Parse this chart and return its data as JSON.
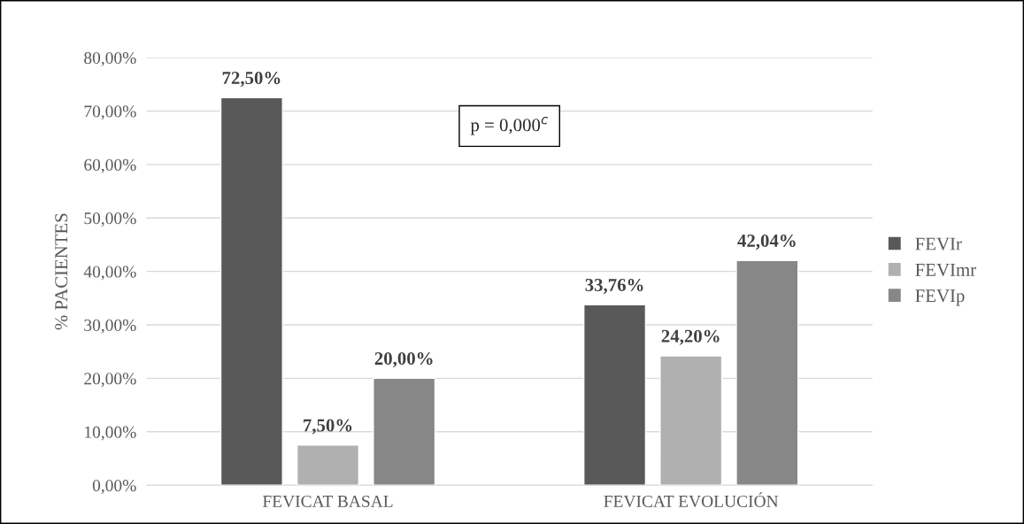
{
  "chart_data": {
    "type": "bar",
    "ylabel": "% PACIENTES",
    "categories": [
      "FEVICAT BASAL",
      "FEVICAT EVOLUCIÓN"
    ],
    "series": [
      {
        "name": "FEVIr",
        "color": "#595959",
        "values": [
          72.5,
          33.76
        ],
        "value_labels": [
          "72,50%",
          "33,76%"
        ]
      },
      {
        "name": "FEVImr",
        "color": "#b0b0b0",
        "values": [
          7.5,
          24.2
        ],
        "value_labels": [
          "7,50%",
          "24,20%"
        ]
      },
      {
        "name": "FEVIp",
        "color": "#878787",
        "values": [
          20.0,
          42.04
        ],
        "value_labels": [
          "20,00%",
          "42,04%"
        ]
      }
    ],
    "ylim": [
      0,
      80
    ],
    "yticks": [
      {
        "value": 0,
        "label": "0,00%"
      },
      {
        "value": 10,
        "label": "10,00%"
      },
      {
        "value": 20,
        "label": "20,00%"
      },
      {
        "value": 30,
        "label": "30,00%"
      },
      {
        "value": 40,
        "label": "40,00%"
      },
      {
        "value": 50,
        "label": "50,00%"
      },
      {
        "value": 60,
        "label": "60,00%"
      },
      {
        "value": 70,
        "label": "70,00%"
      },
      {
        "value": 80,
        "label": "80,00%"
      }
    ],
    "grid": "y",
    "legend": "right",
    "annotations": [
      "p = 0,000$^{c}$"
    ]
  }
}
